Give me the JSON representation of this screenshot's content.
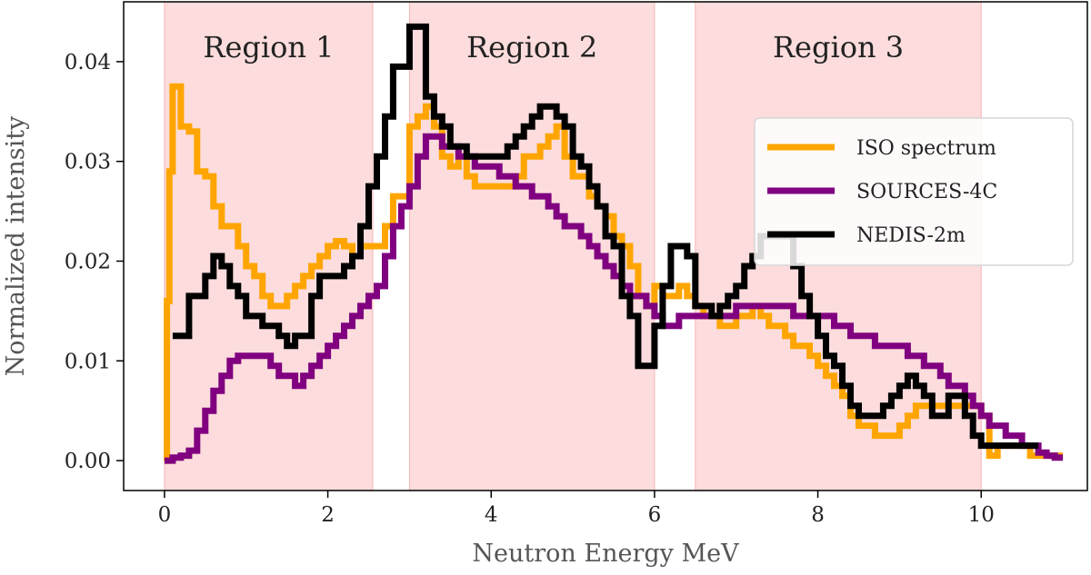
{
  "chart_data": {
    "type": "line",
    "xlabel": "Neutron Energy MeV",
    "ylabel": "Normalized intensity",
    "xlim": [
      -0.5,
      11.3
    ],
    "ylim": [
      -0.003,
      0.046
    ],
    "xticks": [
      0,
      2,
      4,
      6,
      8,
      10
    ],
    "xtick_labels": [
      "0",
      "2",
      "4",
      "6",
      "8",
      "10"
    ],
    "yticks": [
      0.0,
      0.01,
      0.02,
      0.03,
      0.04
    ],
    "ytick_labels": [
      "0.00",
      "0.01",
      "0.02",
      "0.03",
      "0.04"
    ],
    "grid": false,
    "legend_position": "center-right",
    "regions": [
      {
        "label": "Region 1",
        "x0": 0.0,
        "x1": 2.55,
        "color": "#fcdcdc"
      },
      {
        "label": "Region 2",
        "x0": 3.0,
        "x1": 6.0,
        "color": "#fcdcdc"
      },
      {
        "label": "Region 3",
        "x0": 6.5,
        "x1": 10.0,
        "color": "#fcdcdc"
      }
    ],
    "series": [
      {
        "name": "ISO spectrum",
        "color": "#ffa500",
        "x": [
          0.0,
          0.03,
          0.06,
          0.1,
          0.2,
          0.3,
          0.4,
          0.5,
          0.6,
          0.7,
          0.8,
          0.9,
          1.0,
          1.1,
          1.2,
          1.3,
          1.4,
          1.5,
          1.6,
          1.7,
          1.8,
          1.9,
          2.0,
          2.1,
          2.2,
          2.3,
          2.4,
          2.5,
          2.6,
          2.7,
          2.8,
          2.9,
          3.0,
          3.1,
          3.2,
          3.3,
          3.4,
          3.5,
          3.6,
          3.7,
          3.8,
          3.9,
          4.0,
          4.1,
          4.2,
          4.3,
          4.4,
          4.5,
          4.6,
          4.7,
          4.8,
          4.9,
          5.0,
          5.1,
          5.2,
          5.3,
          5.4,
          5.5,
          5.6,
          5.7,
          5.8,
          5.9,
          6.0,
          6.1,
          6.2,
          6.3,
          6.4,
          6.5,
          6.6,
          6.7,
          6.8,
          6.9,
          7.0,
          7.1,
          7.2,
          7.3,
          7.4,
          7.5,
          7.6,
          7.7,
          7.8,
          7.9,
          8.0,
          8.1,
          8.2,
          8.3,
          8.4,
          8.5,
          8.6,
          8.7,
          8.8,
          8.9,
          9.0,
          9.1,
          9.2,
          9.3,
          9.4,
          9.5,
          9.6,
          9.7,
          9.8,
          9.9,
          10.0,
          10.1,
          10.2,
          10.3,
          10.4,
          10.5,
          10.6,
          10.7,
          10.8,
          10.9
        ],
        "y": [
          0.0,
          0.016,
          0.029,
          0.0375,
          0.0335,
          0.033,
          0.029,
          0.0285,
          0.0255,
          0.0235,
          0.0235,
          0.0215,
          0.0195,
          0.0185,
          0.0165,
          0.0155,
          0.0155,
          0.0165,
          0.0175,
          0.0185,
          0.0195,
          0.0205,
          0.0215,
          0.022,
          0.0215,
          0.0205,
          0.0215,
          0.0215,
          0.0215,
          0.0235,
          0.0265,
          0.0265,
          0.0335,
          0.0345,
          0.0355,
          0.0335,
          0.0305,
          0.0295,
          0.0305,
          0.0285,
          0.0275,
          0.0275,
          0.0275,
          0.0275,
          0.0275,
          0.0285,
          0.0305,
          0.0305,
          0.0315,
          0.0325,
          0.0335,
          0.0305,
          0.0285,
          0.0285,
          0.0265,
          0.0255,
          0.0245,
          0.0225,
          0.0215,
          0.0195,
          0.0165,
          0.0155,
          0.0175,
          0.0165,
          0.0165,
          0.0175,
          0.0165,
          0.0155,
          0.0145,
          0.0145,
          0.0135,
          0.0135,
          0.0145,
          0.0145,
          0.0155,
          0.0145,
          0.0135,
          0.0135,
          0.0125,
          0.0115,
          0.0115,
          0.0105,
          0.0095,
          0.0085,
          0.0075,
          0.0065,
          0.0045,
          0.0035,
          0.0035,
          0.0025,
          0.0025,
          0.0025,
          0.0035,
          0.0045,
          0.0055,
          0.0055,
          0.0055,
          0.0055,
          0.0055,
          0.0055,
          0.0055,
          0.0055,
          0.0045,
          0.0005,
          0.0015,
          0.0015,
          0.0015,
          0.0015,
          0.0005,
          0.0005,
          0.0005,
          0.0005
        ]
      },
      {
        "name": "SOURCES-4C",
        "color": "#800080",
        "x": [
          0.0,
          0.1,
          0.2,
          0.3,
          0.4,
          0.5,
          0.6,
          0.7,
          0.8,
          0.9,
          1.0,
          1.1,
          1.2,
          1.3,
          1.4,
          1.5,
          1.6,
          1.7,
          1.8,
          1.9,
          2.0,
          2.1,
          2.2,
          2.3,
          2.4,
          2.5,
          2.6,
          2.7,
          2.8,
          2.9,
          3.0,
          3.1,
          3.2,
          3.3,
          3.4,
          3.5,
          3.6,
          3.7,
          3.8,
          3.9,
          4.0,
          4.1,
          4.2,
          4.3,
          4.4,
          4.5,
          4.6,
          4.7,
          4.8,
          4.9,
          5.0,
          5.1,
          5.2,
          5.3,
          5.4,
          5.5,
          5.6,
          5.7,
          5.8,
          5.9,
          6.0,
          6.1,
          6.2,
          6.3,
          6.4,
          6.5,
          6.6,
          6.7,
          6.8,
          6.9,
          7.0,
          7.1,
          7.2,
          7.3,
          7.4,
          7.5,
          7.6,
          7.7,
          7.8,
          7.9,
          8.0,
          8.1,
          8.2,
          8.3,
          8.4,
          8.5,
          8.6,
          8.7,
          8.8,
          8.9,
          9.0,
          9.1,
          9.2,
          9.3,
          9.4,
          9.5,
          9.6,
          9.7,
          9.8,
          9.9,
          10.0,
          10.1,
          10.2,
          10.3,
          10.4,
          10.5,
          10.6,
          10.7,
          10.8,
          10.9
        ],
        "y": [
          0.0,
          0.0003,
          0.0005,
          0.001,
          0.003,
          0.005,
          0.007,
          0.0085,
          0.01,
          0.0105,
          0.0105,
          0.0105,
          0.0105,
          0.0095,
          0.0085,
          0.0085,
          0.0075,
          0.0085,
          0.0095,
          0.0105,
          0.0115,
          0.0125,
          0.0135,
          0.0145,
          0.0155,
          0.0165,
          0.0175,
          0.0205,
          0.0235,
          0.0255,
          0.0275,
          0.0305,
          0.0325,
          0.0325,
          0.0315,
          0.0315,
          0.0305,
          0.0305,
          0.0295,
          0.0295,
          0.0295,
          0.0285,
          0.0285,
          0.0275,
          0.0275,
          0.0265,
          0.0265,
          0.0255,
          0.0245,
          0.0235,
          0.0235,
          0.0225,
          0.0215,
          0.0205,
          0.0195,
          0.0185,
          0.0175,
          0.0165,
          0.0165,
          0.0155,
          0.0145,
          0.0135,
          0.0135,
          0.0145,
          0.0145,
          0.0145,
          0.0145,
          0.0145,
          0.0145,
          0.0145,
          0.0155,
          0.0155,
          0.0155,
          0.0155,
          0.0155,
          0.0155,
          0.0155,
          0.0145,
          0.0145,
          0.0145,
          0.0145,
          0.0145,
          0.0135,
          0.0135,
          0.0125,
          0.0125,
          0.0125,
          0.0115,
          0.0115,
          0.0115,
          0.0115,
          0.0105,
          0.0105,
          0.0095,
          0.0095,
          0.0085,
          0.0075,
          0.0075,
          0.0065,
          0.0055,
          0.0045,
          0.0035,
          0.0035,
          0.0025,
          0.0025,
          0.0015,
          0.0015,
          0.0008,
          0.0005,
          0.0003
        ]
      },
      {
        "name": "NEDIS-2m",
        "color": "#000000",
        "x": [
          0.1,
          0.2,
          0.3,
          0.4,
          0.5,
          0.6,
          0.7,
          0.8,
          0.9,
          1.0,
          1.1,
          1.2,
          1.3,
          1.4,
          1.5,
          1.6,
          1.7,
          1.8,
          1.9,
          2.0,
          2.1,
          2.2,
          2.3,
          2.4,
          2.5,
          2.6,
          2.7,
          2.8,
          2.9,
          3.0,
          3.1,
          3.2,
          3.3,
          3.4,
          3.5,
          3.6,
          3.7,
          3.8,
          3.9,
          4.0,
          4.1,
          4.2,
          4.3,
          4.4,
          4.5,
          4.6,
          4.7,
          4.8,
          4.9,
          5.0,
          5.1,
          5.2,
          5.3,
          5.4,
          5.5,
          5.6,
          5.7,
          5.8,
          5.9,
          6.0,
          6.1,
          6.2,
          6.3,
          6.4,
          6.5,
          6.6,
          6.7,
          6.8,
          6.9,
          7.0,
          7.1,
          7.2,
          7.3,
          7.4,
          7.5,
          7.6,
          7.7,
          7.8,
          7.9,
          8.0,
          8.1,
          8.2,
          8.3,
          8.4,
          8.5,
          8.6,
          8.7,
          8.8,
          8.9,
          9.0,
          9.1,
          9.2,
          9.3,
          9.4,
          9.5,
          9.6,
          9.7,
          9.8,
          9.9,
          10.0,
          10.1,
          10.2,
          10.3,
          10.4,
          10.5,
          10.6
        ],
        "y": [
          0.0125,
          0.0125,
          0.0165,
          0.0165,
          0.0185,
          0.0205,
          0.0195,
          0.0175,
          0.0165,
          0.0145,
          0.0145,
          0.0135,
          0.0135,
          0.0125,
          0.0115,
          0.0125,
          0.0125,
          0.0165,
          0.0185,
          0.0185,
          0.0185,
          0.0195,
          0.0205,
          0.0235,
          0.0275,
          0.0305,
          0.0345,
          0.0395,
          0.0395,
          0.0435,
          0.0435,
          0.0365,
          0.0345,
          0.0335,
          0.0315,
          0.0315,
          0.0305,
          0.0305,
          0.0305,
          0.0305,
          0.0305,
          0.0315,
          0.0325,
          0.0335,
          0.0345,
          0.0355,
          0.0355,
          0.0345,
          0.0335,
          0.0305,
          0.0295,
          0.0275,
          0.0255,
          0.0225,
          0.0215,
          0.0165,
          0.0145,
          0.0095,
          0.0095,
          0.0135,
          0.0175,
          0.0215,
          0.0215,
          0.0205,
          0.0155,
          0.0155,
          0.0145,
          0.0155,
          0.0165,
          0.0175,
          0.0195,
          0.0205,
          0.0225,
          0.0225,
          0.0225,
          0.0225,
          0.0195,
          0.0165,
          0.0145,
          0.0125,
          0.0105,
          0.0095,
          0.0075,
          0.0055,
          0.0045,
          0.0045,
          0.0045,
          0.0055,
          0.0065,
          0.0075,
          0.0085,
          0.0075,
          0.0065,
          0.0045,
          0.0045,
          0.0065,
          0.0065,
          0.0045,
          0.0025,
          0.0015,
          0.0015,
          0.0015,
          0.0015,
          0.0015,
          0.0015,
          0.0015
        ]
      }
    ]
  }
}
